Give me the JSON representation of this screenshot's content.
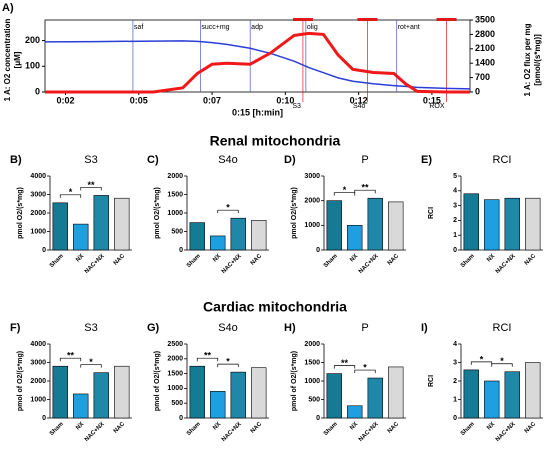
{
  "headings": [
    "Renal mitochondria",
    "Cardiac mitochondria"
  ],
  "chart_data": [
    {
      "type": "line",
      "panel_label": "A)",
      "xlabel": "0:15 [h:min]",
      "ylabel": [
        "1 A: O2 concentration",
        "[μM]"
      ],
      "y2label": [
        "1 A: O2 flux per mg",
        "[pmol/(s*mg)]"
      ],
      "xlim": [
        1.3,
        15.8
      ],
      "xticks": [
        {
          "value": 2,
          "label": "0:02"
        },
        {
          "value": 4.5,
          "label": "0:05"
        },
        {
          "value": 7,
          "label": "0:07"
        },
        {
          "value": 9.5,
          "label": "0:10"
        },
        {
          "value": 12,
          "label": "0:12"
        },
        {
          "value": 14.5,
          "label": "0:15"
        }
      ],
      "ylim": [
        0,
        280
      ],
      "yticks": [
        0,
        100,
        200
      ],
      "y2lim": [
        0,
        3500
      ],
      "y2ticks": [
        0,
        700,
        1400,
        2100,
        2800,
        3500
      ],
      "x": [
        1.3,
        3,
        5,
        6,
        6.5,
        7,
        7.5,
        8.3,
        9,
        9.8,
        10.3,
        10.8,
        11.3,
        11.8,
        12.5,
        13.2,
        13.6,
        14,
        15,
        15.8
      ],
      "series": [
        {
          "name": "O2 concentration",
          "color": "#2b3fd6",
          "values": [
            195,
            196,
            198,
            199,
            197,
            192,
            185,
            170,
            150,
            120,
            95,
            75,
            55,
            42,
            32,
            25,
            22,
            18,
            14,
            12
          ]
        },
        {
          "name": "O2 flux per mg",
          "color": "#f01818",
          "axis": "y2",
          "values": [
            0,
            0,
            0,
            200,
            900,
            1350,
            1400,
            1350,
            1900,
            2750,
            2850,
            2800,
            1800,
            1100,
            950,
            900,
            400,
            30,
            0,
            0
          ]
        }
      ],
      "events": [
        {
          "text": "saf",
          "x": 4.3
        },
        {
          "text": "succ+mg",
          "x": 6.6
        },
        {
          "text": "adp",
          "x": 8.3
        },
        {
          "text": "olig",
          "x": 10.2
        },
        {
          "text": "rot+ant",
          "x": 13.3
        }
      ],
      "annotations": [
        {
          "text": "S3",
          "x": 10.1
        },
        {
          "text": "S4o",
          "x": 12.3
        },
        {
          "text": "ROX",
          "x": 15.0
        }
      ]
    },
    {
      "type": "bar",
      "panel_label": "B)",
      "title": "S3",
      "ylabel": "pmol O2/(s*mg)",
      "categories": [
        "Sham",
        "NX",
        "NAC+NX",
        "NAC"
      ],
      "values": [
        2550,
        1400,
        2950,
        2800
      ],
      "colors": [
        "#157a94",
        "#1ea0e0",
        "#1f88a8",
        "#d9d9d9"
      ],
      "ylim": [
        0,
        4000
      ],
      "yticks": [
        0,
        1000,
        2000,
        3000,
        4000
      ],
      "significance": [
        {
          "pair": [
            "Sham",
            "NX"
          ],
          "label": "*"
        },
        {
          "pair": [
            "NX",
            "NAC+NX"
          ],
          "label": "**"
        }
      ]
    },
    {
      "type": "bar",
      "panel_label": "C)",
      "title": "S4o",
      "ylabel": "pmol O2/(s*mg)",
      "categories": [
        "Sham",
        "NX",
        "NAC+NX",
        "NAC"
      ],
      "values": [
        740,
        380,
        860,
        800
      ],
      "colors": [
        "#157a94",
        "#1ea0e0",
        "#1f88a8",
        "#d9d9d9"
      ],
      "ylim": [
        0,
        2000
      ],
      "yticks": [
        0,
        500,
        1000,
        1500,
        2000
      ],
      "significance": [
        {
          "pair": [
            "NX",
            "NAC+NX"
          ],
          "label": "*"
        }
      ]
    },
    {
      "type": "bar",
      "panel_label": "D)",
      "title": "P",
      "ylabel": "pmol O2/(s*mg)",
      "categories": [
        "Sham",
        "NX",
        "NAC+NX",
        "NAC"
      ],
      "values": [
        2000,
        1000,
        2100,
        1950
      ],
      "colors": [
        "#157a94",
        "#1ea0e0",
        "#1f88a8",
        "#d9d9d9"
      ],
      "ylim": [
        0,
        3000
      ],
      "yticks": [
        0,
        1000,
        2000,
        3000
      ],
      "significance": [
        {
          "pair": [
            "Sham",
            "NX"
          ],
          "label": "*"
        },
        {
          "pair": [
            "NX",
            "NAC+NX"
          ],
          "label": "**"
        }
      ]
    },
    {
      "type": "bar",
      "panel_label": "E)",
      "title": "RCI",
      "ylabel": "RCI",
      "categories": [
        "Sham",
        "NX",
        "NAC+NX",
        "NAC"
      ],
      "values": [
        3.8,
        3.4,
        3.5,
        3.5
      ],
      "colors": [
        "#157a94",
        "#1ea0e0",
        "#1f88a8",
        "#d9d9d9"
      ],
      "ylim": [
        0,
        5
      ],
      "yticks": [
        0,
        1,
        2,
        3,
        4,
        5
      ],
      "significance": []
    },
    {
      "type": "bar",
      "panel_label": "F)",
      "title": "S3",
      "ylabel": "pmol of O2/(s*mg)",
      "categories": [
        "Sham",
        "NX",
        "NAC+NX",
        "NAC"
      ],
      "values": [
        2800,
        1300,
        2450,
        2800
      ],
      "colors": [
        "#157a94",
        "#1ea0e0",
        "#1f88a8",
        "#d9d9d9"
      ],
      "ylim": [
        0,
        4000
      ],
      "yticks": [
        0,
        1000,
        2000,
        3000,
        4000
      ],
      "significance": [
        {
          "pair": [
            "Sham",
            "NX"
          ],
          "label": "**"
        },
        {
          "pair": [
            "NX",
            "NAC+NX"
          ],
          "label": "*"
        }
      ]
    },
    {
      "type": "bar",
      "panel_label": "G)",
      "title": "S4o",
      "ylabel": "pmol of O2/(s*mg)",
      "categories": [
        "Sham",
        "NX",
        "NAC+NX",
        "NAC"
      ],
      "values": [
        1750,
        900,
        1550,
        1700
      ],
      "colors": [
        "#157a94",
        "#1ea0e0",
        "#1f88a8",
        "#d9d9d9"
      ],
      "ylim": [
        0,
        2500
      ],
      "yticks": [
        0,
        500,
        1000,
        1500,
        2000,
        2500
      ],
      "significance": [
        {
          "pair": [
            "Sham",
            "NX"
          ],
          "label": "**"
        },
        {
          "pair": [
            "NX",
            "NAC+NX"
          ],
          "label": "*"
        }
      ]
    },
    {
      "type": "bar",
      "panel_label": "H)",
      "title": "P",
      "ylabel": "pmol of O2/(s*mg)",
      "categories": [
        "Sham",
        "NX",
        "NAC+NX",
        "NAC"
      ],
      "values": [
        1200,
        330,
        1080,
        1380
      ],
      "colors": [
        "#157a94",
        "#1ea0e0",
        "#1f88a8",
        "#d9d9d9"
      ],
      "ylim": [
        0,
        2000
      ],
      "yticks": [
        0,
        500,
        1000,
        1500,
        2000
      ],
      "significance": [
        {
          "pair": [
            "Sham",
            "NX"
          ],
          "label": "**"
        },
        {
          "pair": [
            "NX",
            "NAC+NX"
          ],
          "label": "*"
        }
      ]
    },
    {
      "type": "bar",
      "panel_label": "I)",
      "title": "RCI",
      "ylabel": "RCI",
      "categories": [
        "Sham",
        "NX",
        "NAC+NX",
        "NAC"
      ],
      "values": [
        2.6,
        2.0,
        2.5,
        3.0
      ],
      "colors": [
        "#157a94",
        "#1ea0e0",
        "#1f88a8",
        "#d9d9d9"
      ],
      "ylim": [
        0,
        4
      ],
      "yticks": [
        0,
        1,
        2,
        3,
        4
      ],
      "significance": [
        {
          "pair": [
            "Sham",
            "NX"
          ],
          "label": "*"
        },
        {
          "pair": [
            "NX",
            "NAC+NX"
          ],
          "label": "*"
        }
      ]
    }
  ]
}
